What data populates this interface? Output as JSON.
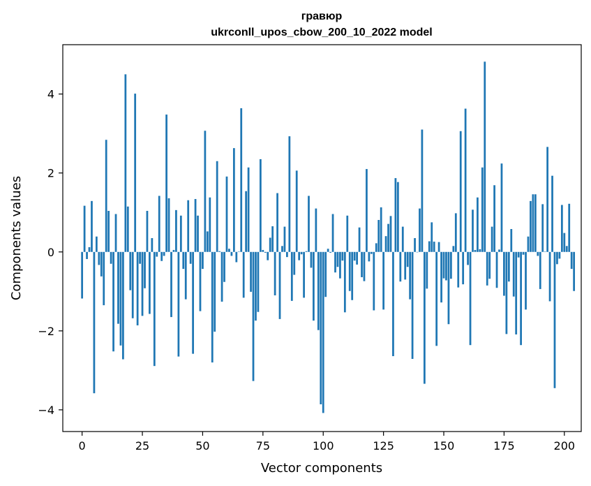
{
  "chart_data": {
    "type": "bar",
    "title": "гравюр",
    "subtitle": "ukrconll_upos_cbow_200_10_2022 model",
    "xlabel": "Vector components",
    "ylabel": "Components values",
    "xlim": [
      -8,
      207
    ],
    "ylim": [
      -4.55,
      5.25
    ],
    "xticks": [
      0,
      25,
      50,
      75,
      100,
      125,
      150,
      175,
      200
    ],
    "yticks": [
      -4,
      -2,
      0,
      2,
      4
    ],
    "ytick_labels": [
      "−4",
      "−2",
      "0",
      "2",
      "4"
    ],
    "grid": false,
    "bar_color": "#1f77b4",
    "series": [
      {
        "values": [
          -1.18,
          1.17,
          -0.18,
          0.12,
          1.29,
          -3.58,
          0.39,
          -0.33,
          -0.62,
          -1.35,
          2.84,
          1.04,
          -0.3,
          -2.52,
          0.96,
          -1.82,
          -2.37,
          -2.72,
          4.5,
          1.15,
          -0.97,
          -1.68,
          4.01,
          -1.86,
          -0.3,
          -1.62,
          -0.92,
          1.04,
          -1.57,
          0.35,
          -2.89,
          -0.12,
          1.42,
          -0.23,
          -0.1,
          3.48,
          1.36,
          -1.65,
          0.05,
          1.06,
          -2.65,
          0.92,
          -0.43,
          -1.2,
          1.31,
          -0.3,
          -2.58,
          1.34,
          0.92,
          -1.5,
          -0.43,
          3.07,
          0.52,
          1.38,
          -2.8,
          -2.02,
          2.3,
          0.02,
          -1.26,
          -0.76,
          1.91,
          0.08,
          -0.1,
          2.63,
          -0.26,
          0.01,
          3.64,
          -1.16,
          1.54,
          2.14,
          -1.01,
          -3.27,
          -1.74,
          -1.52,
          2.35,
          0.05,
          -0.02,
          -0.21,
          0.36,
          0.65,
          -1.1,
          1.49,
          -1.7,
          0.15,
          0.64,
          -0.13,
          2.93,
          -1.24,
          -0.58,
          2.06,
          -0.21,
          -0.06,
          -1.16,
          0.02,
          1.42,
          -0.4,
          -1.74,
          1.1,
          -1.98,
          -3.86,
          -4.08,
          -1.14,
          0.08,
          -0.02,
          0.96,
          -0.52,
          -0.38,
          -0.67,
          -0.22,
          -1.53,
          0.92,
          -0.99,
          -1.22,
          -0.22,
          -0.32,
          0.62,
          -0.64,
          -0.74,
          2.1,
          -0.24,
          -0.05,
          -1.48,
          0.22,
          0.81,
          1.13,
          -1.46,
          0.4,
          0.71,
          0.91,
          -2.64,
          1.87,
          1.77,
          -0.75,
          0.64,
          -0.7,
          -0.38,
          -1.2,
          -2.71,
          0.35,
          -0.01,
          1.1,
          3.1,
          -3.34,
          -0.93,
          0.27,
          0.75,
          0.26,
          -2.38,
          0.25,
          -1.28,
          -0.67,
          -0.72,
          -1.83,
          -0.68,
          0.15,
          0.98,
          -0.9,
          3.06,
          -0.82,
          3.63,
          -0.33,
          -2.36,
          1.07,
          0.05,
          1.38,
          0.07,
          2.14,
          4.82,
          -0.85,
          -0.68,
          0.64,
          1.69,
          -0.91,
          0.06,
          2.24,
          -1.11,
          -2.08,
          -0.75,
          0.58,
          -1.13,
          -2.09,
          -0.14,
          -2.36,
          -0.07,
          -1.46,
          0.39,
          1.29,
          1.46,
          1.46,
          -0.1,
          -0.94,
          1.21,
          0.01,
          2.66,
          -1.25,
          1.93,
          -3.45,
          -0.31,
          -0.17,
          1.19,
          0.48,
          0.15,
          1.22,
          -0.43,
          -0.99
        ]
      }
    ]
  }
}
